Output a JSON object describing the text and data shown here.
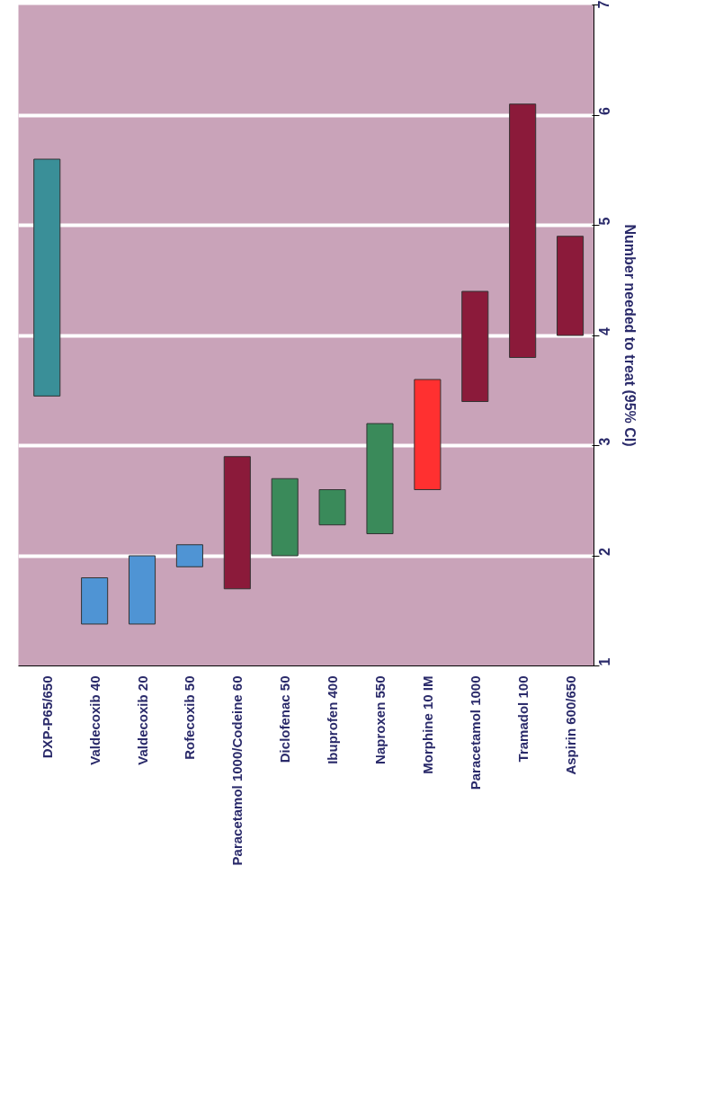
{
  "chart_data": {
    "type": "bar",
    "categories": [
      "DXP-P65/650",
      "Valdecoxib 40",
      "Valdecoxib 20",
      "Rofecoxib 50",
      "Paracetamol 1000/Codeine 60",
      "Diclofenac 50",
      "Ibuprofen 400",
      "Naproxen 550",
      "Morphine 10 IM",
      "Paracetamol 1000",
      "Tramadol 100",
      "Aspirin 600/650"
    ],
    "base": [
      3.45,
      1.38,
      1.38,
      1.9,
      1.7,
      2.0,
      2.28,
      2.2,
      2.6,
      3.4,
      3.8,
      4.0
    ],
    "values": [
      2.15,
      0.42,
      0.62,
      0.2,
      1.2,
      0.7,
      0.32,
      1.0,
      1.0,
      1.0,
      2.3,
      0.9
    ],
    "colors": [
      "#3a8f98",
      "#4f94d4",
      "#4f94d4",
      "#4f94d4",
      "#8b1a3a",
      "#3a8a5a",
      "#3a8a5a",
      "#3a8a5a",
      "#ff3030",
      "#8b1a3a",
      "#8b1a3a",
      "#8b1a3a"
    ],
    "ylabel": "Number needed to treat (95% CI)",
    "ylim": [
      1,
      7
    ],
    "yticks": [
      1,
      2,
      3,
      4,
      5,
      6,
      7
    ],
    "grid": "y"
  }
}
